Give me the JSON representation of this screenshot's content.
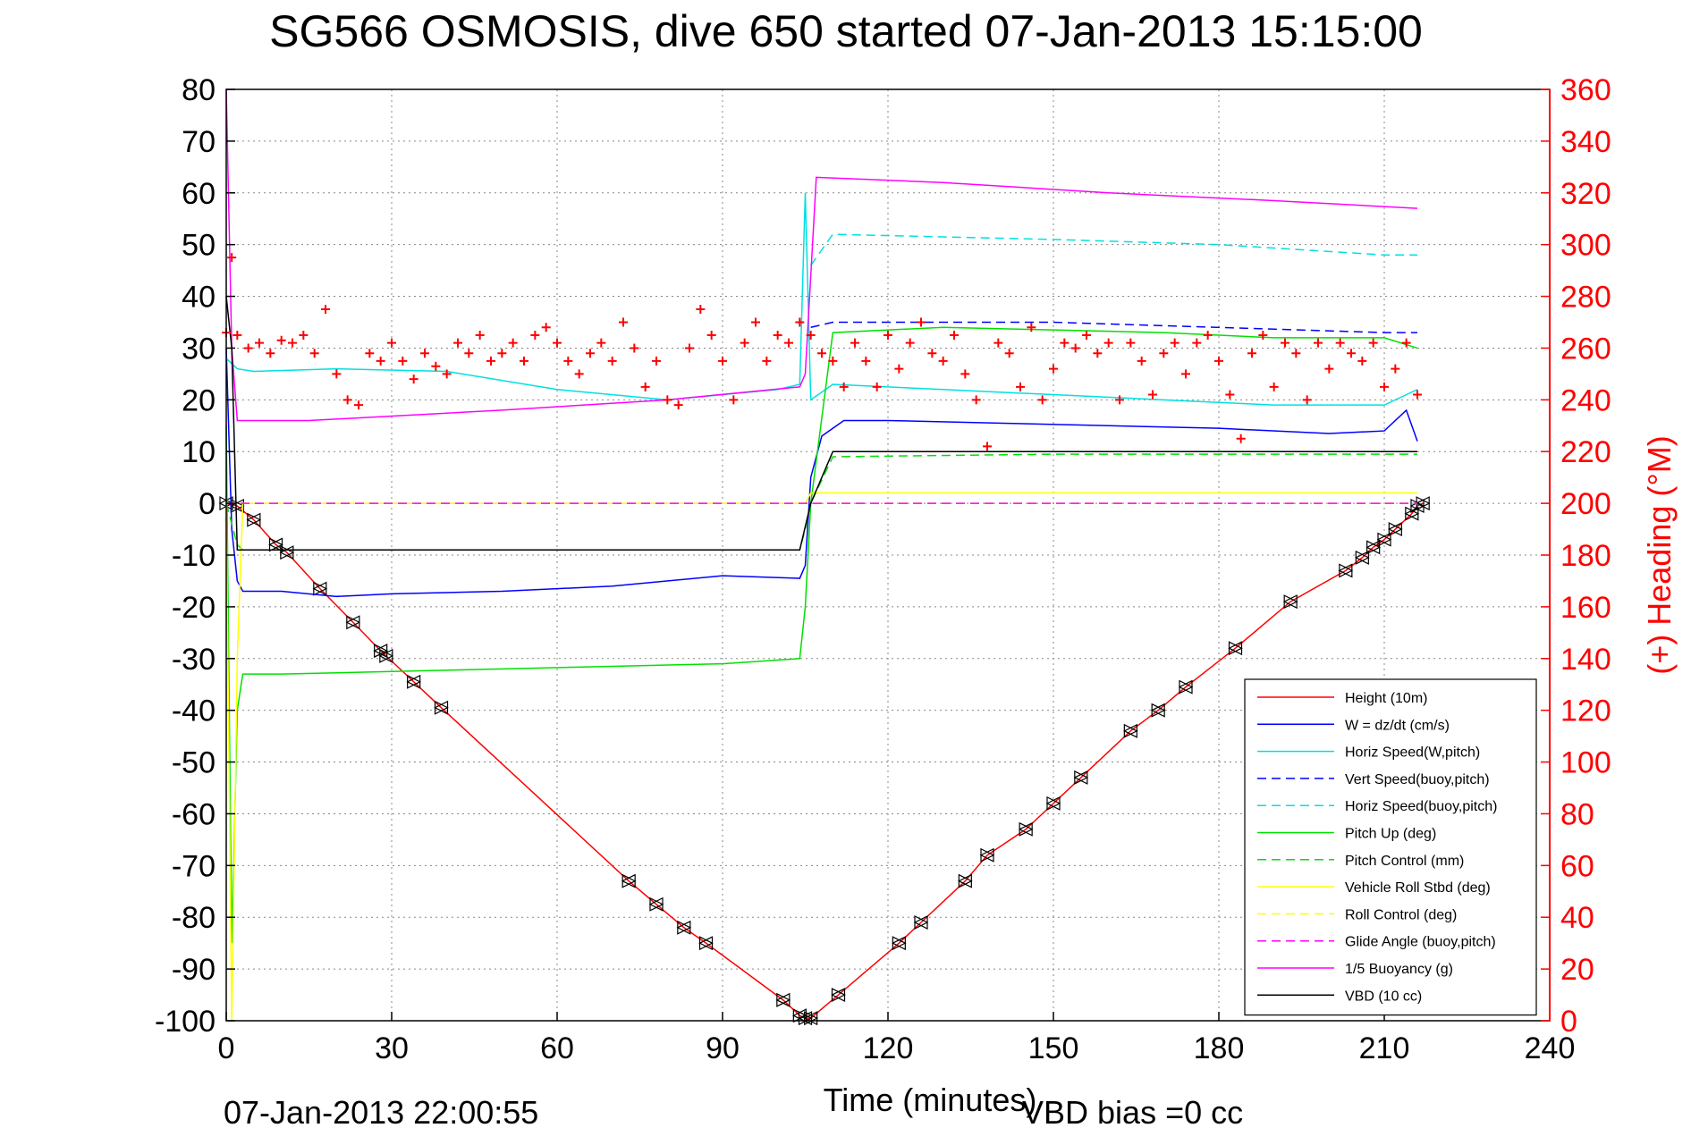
{
  "chart_data": {
    "type": "line",
    "title": "SG566 OSMOSIS, dive 650 started 07-Jan-2013 15:15:00",
    "xlabel": "Time (minutes)",
    "ylabel": "",
    "y2label": "(+) Heading (°M)",
    "xlim": [
      0,
      240
    ],
    "ylim": [
      -100,
      80
    ],
    "y2lim": [
      0,
      360
    ],
    "xticks": [
      0,
      30,
      60,
      90,
      120,
      150,
      180,
      210,
      240
    ],
    "yticks": [
      -100,
      -90,
      -80,
      -70,
      -60,
      -50,
      -40,
      -30,
      -20,
      -10,
      0,
      10,
      20,
      30,
      40,
      50,
      60,
      70,
      80
    ],
    "y2ticks": [
      0,
      20,
      40,
      60,
      80,
      100,
      120,
      140,
      160,
      180,
      200,
      220,
      240,
      260,
      280,
      300,
      320,
      340,
      360
    ],
    "grid": true,
    "legend_position": "lower-right",
    "footer_left": "07-Jan-2013 22:00:55",
    "footer_right": "VBD bias =0 cc",
    "series": [
      {
        "name": "Height (10m)",
        "color": "#ff0000",
        "style": "solid",
        "markers": "triangles",
        "x": [
          0,
          2,
          5,
          9,
          11,
          17,
          23,
          28,
          29,
          34,
          39,
          73,
          78,
          83,
          87,
          101,
          104,
          105,
          106,
          111,
          122,
          126,
          134,
          138,
          145,
          150,
          155,
          164,
          169,
          174,
          183,
          193,
          203,
          206,
          208,
          210,
          212,
          215,
          216,
          217
        ],
        "y": [
          0,
          -0.5,
          -3.2,
          -8,
          -9.5,
          -16.5,
          -23,
          -28.5,
          -29.5,
          -34.5,
          -39.5,
          -73,
          -77.5,
          -82,
          -85,
          -96,
          -99,
          -99.5,
          -99.5,
          -95,
          -85,
          -81,
          -73,
          -68,
          -63,
          -58,
          -53,
          -44,
          -40,
          -35.5,
          -28,
          -19,
          -13,
          -10.5,
          -8.5,
          -7,
          -5,
          -2,
          -0.5,
          0
        ]
      },
      {
        "name": "W = dz/dt (cm/s)",
        "color": "#0000ff",
        "style": "solid",
        "x": [
          0,
          1,
          2,
          3,
          10,
          20,
          30,
          50,
          70,
          90,
          104,
          105,
          106,
          108,
          112,
          120,
          140,
          160,
          180,
          200,
          210,
          214,
          216
        ],
        "y": [
          30,
          -5,
          -15,
          -17,
          -17,
          -18,
          -17.5,
          -17,
          -16,
          -14,
          -14.5,
          -12,
          5,
          13,
          16,
          16,
          15.5,
          15,
          14.5,
          13.5,
          14,
          18,
          12
        ]
      },
      {
        "name": "Horiz Speed(W,pitch)",
        "color": "#00e0e0",
        "style": "solid",
        "x": [
          0,
          2,
          5,
          20,
          40,
          60,
          80,
          100,
          104,
          105,
          106,
          110,
          130,
          150,
          170,
          190,
          210,
          216
        ],
        "y": [
          28,
          26,
          25.5,
          26,
          25.5,
          22,
          20,
          22,
          23,
          60,
          20,
          23,
          22,
          21,
          20,
          19,
          19,
          22
        ]
      },
      {
        "name": "Vert Speed(buoy,pitch)",
        "color": "#0000ff",
        "style": "dash",
        "x": [
          106,
          110,
          150,
          210,
          216
        ],
        "y": [
          34,
          35,
          35,
          33,
          33
        ]
      },
      {
        "name": "Horiz Speed(buoy,pitch)",
        "color": "#00e0e0",
        "style": "dash",
        "x": [
          106,
          110,
          150,
          180,
          210,
          216
        ],
        "y": [
          46,
          52,
          51,
          50,
          48,
          48
        ]
      },
      {
        "name": "Pitch Up (deg)",
        "color": "#00e000",
        "style": "solid",
        "x": [
          0,
          1,
          2,
          3,
          10,
          30,
          50,
          70,
          90,
          104,
          105,
          106,
          110,
          130,
          150,
          170,
          190,
          210,
          216
        ],
        "y": [
          15,
          -85,
          -40,
          -33,
          -33,
          -32.5,
          -32,
          -31.5,
          -31,
          -30,
          -20,
          0,
          33,
          34,
          33.5,
          33,
          32,
          32,
          30
        ]
      },
      {
        "name": "Pitch Control (mm)",
        "color": "#00e000",
        "style": "dash",
        "x": [
          0,
          2,
          3,
          104,
          105,
          106,
          110,
          150,
          216
        ],
        "y": [
          0,
          -8,
          -9,
          -9,
          -5,
          0,
          9,
          9.5,
          9.5
        ]
      },
      {
        "name": "Vehicle Roll Stbd (deg)",
        "color": "#ffff00",
        "style": "solid",
        "x": [
          0,
          1,
          2,
          3,
          104,
          105,
          106,
          110,
          150,
          210,
          216
        ],
        "y": [
          0,
          -100,
          -30,
          0,
          0,
          0,
          2,
          2,
          2,
          2,
          2
        ]
      },
      {
        "name": "Roll Control (deg)",
        "color": "#ffff00",
        "style": "dash",
        "x": [
          0,
          104,
          106,
          216
        ],
        "y": [
          0,
          0,
          0,
          0
        ]
      },
      {
        "name": "Glide Angle (buoy,pitch)",
        "color": "#ff00ff",
        "style": "dash",
        "x": [
          0,
          104,
          106,
          216
        ],
        "y": [
          0,
          0,
          0,
          0
        ]
      },
      {
        "name": "1/5 Buoyancy (g)",
        "color": "#ff00ff",
        "style": "solid",
        "x": [
          0,
          1,
          2,
          15,
          50,
          80,
          104,
          105,
          107,
          130,
          160,
          190,
          216
        ],
        "y": [
          80,
          30,
          16,
          16,
          18,
          20,
          22.5,
          25,
          63,
          62,
          60,
          58.5,
          57
        ]
      },
      {
        "name": "VBD (10 cc)",
        "color": "#000000",
        "style": "solid",
        "x": [
          0,
          1,
          2,
          104,
          106,
          110,
          216
        ],
        "y": [
          40,
          30,
          -9,
          -9,
          0,
          10,
          10
        ]
      },
      {
        "name": "Heading",
        "color": "#ff0000",
        "style": "marker-plus",
        "axis": "right",
        "x": [
          0,
          1,
          2,
          4,
          6,
          8,
          10,
          12,
          14,
          16,
          18,
          20,
          22,
          24,
          26,
          28,
          30,
          32,
          34,
          36,
          38,
          40,
          42,
          44,
          46,
          48,
          50,
          52,
          54,
          56,
          58,
          60,
          62,
          64,
          66,
          68,
          70,
          72,
          74,
          76,
          78,
          80,
          82,
          84,
          86,
          88,
          90,
          92,
          94,
          96,
          98,
          100,
          102,
          104,
          106,
          108,
          110,
          112,
          114,
          116,
          118,
          120,
          122,
          124,
          126,
          128,
          130,
          132,
          134,
          136,
          138,
          140,
          142,
          144,
          146,
          148,
          150,
          152,
          154,
          156,
          158,
          160,
          162,
          164,
          166,
          168,
          170,
          172,
          174,
          176,
          178,
          180,
          182,
          184,
          186,
          188,
          190,
          192,
          194,
          196,
          198,
          200,
          202,
          204,
          206,
          208,
          210,
          212,
          214,
          216
        ],
        "y": [
          266,
          295,
          265,
          260,
          262,
          258,
          263,
          262,
          265,
          258,
          275,
          250,
          240,
          238,
          258,
          255,
          262,
          255,
          248,
          258,
          253,
          250,
          262,
          258,
          265,
          255,
          258,
          262,
          255,
          265,
          268,
          262,
          255,
          250,
          258,
          262,
          255,
          270,
          260,
          245,
          255,
          240,
          238,
          260,
          275,
          265,
          255,
          240,
          262,
          270,
          255,
          265,
          262,
          270,
          265,
          258,
          255,
          245,
          262,
          255,
          245,
          265,
          252,
          262,
          270,
          258,
          255,
          265,
          250,
          240,
          222,
          262,
          258,
          245,
          268,
          240,
          252,
          262,
          260,
          265,
          258,
          262,
          240,
          262,
          255,
          242,
          258,
          262,
          250,
          262,
          265,
          255,
          242,
          225,
          258,
          265,
          245,
          262,
          258,
          240,
          262,
          252,
          262,
          258,
          255,
          262,
          245,
          252,
          262,
          242
        ]
      }
    ]
  }
}
